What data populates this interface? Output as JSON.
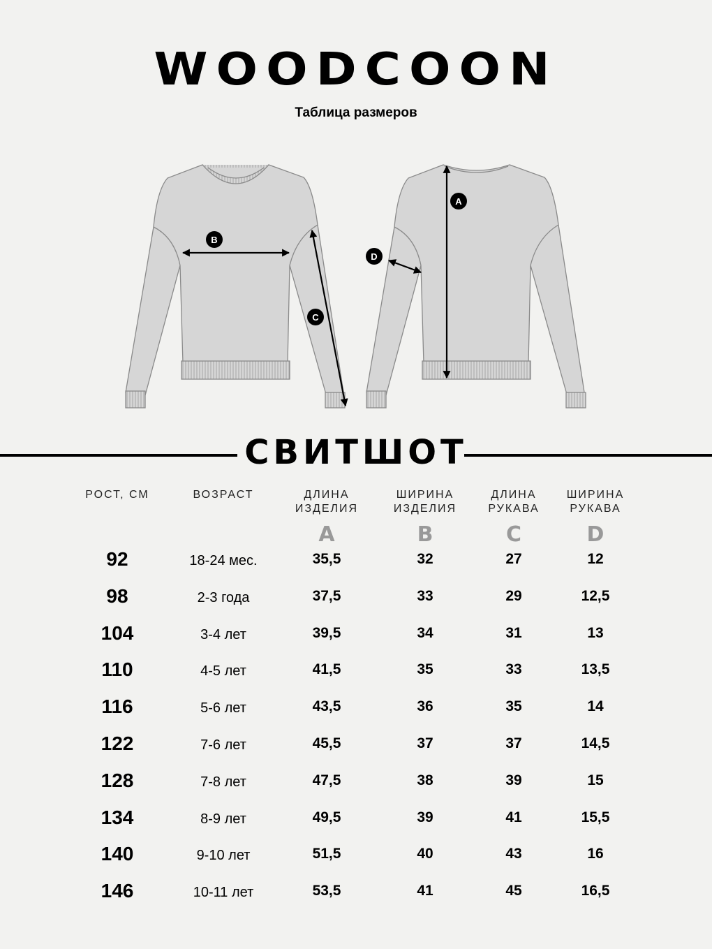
{
  "brand": "WOODCOON",
  "subtitle": "Таблица размеров",
  "diagram_labels": {
    "a": "A",
    "b": "B",
    "c": "C",
    "d": "D"
  },
  "product": "СВИТШОТ",
  "table": {
    "headers": [
      [
        "РОСТ, СМ",
        ""
      ],
      [
        "ВОЗРАСТ",
        ""
      ],
      [
        "ДЛИНА",
        "ИЗДЕЛИЯ"
      ],
      [
        "ШИРИНА",
        "ИЗДЕЛИЯ"
      ],
      [
        "ДЛИНА",
        "РУКАВА"
      ],
      [
        "ШИРИНА",
        "РУКАВА"
      ]
    ],
    "letters": [
      "",
      "",
      "A",
      "B",
      "C",
      "D"
    ],
    "rows": [
      [
        "92",
        "18-24 мес.",
        "35,5",
        "32",
        "27",
        "12"
      ],
      [
        "98",
        "2-3 года",
        "37,5",
        "33",
        "29",
        "12,5"
      ],
      [
        "104",
        "3-4 лет",
        "39,5",
        "34",
        "31",
        "13"
      ],
      [
        "110",
        "4-5 лет",
        "41,5",
        "35",
        "33",
        "13,5"
      ],
      [
        "116",
        "5-6 лет",
        "43,5",
        "36",
        "35",
        "14"
      ],
      [
        "122",
        "7-6 лет",
        "45,5",
        "37",
        "37",
        "14,5"
      ],
      [
        "128",
        "7-8 лет",
        "47,5",
        "38",
        "39",
        "15"
      ],
      [
        "134",
        "8-9 лет",
        "49,5",
        "39",
        "41",
        "15,5"
      ],
      [
        "140",
        "9-10 лет",
        "51,5",
        "40",
        "43",
        "16"
      ],
      [
        "146",
        "10-11 лет",
        "53,5",
        "41",
        "45",
        "16,5"
      ]
    ]
  }
}
